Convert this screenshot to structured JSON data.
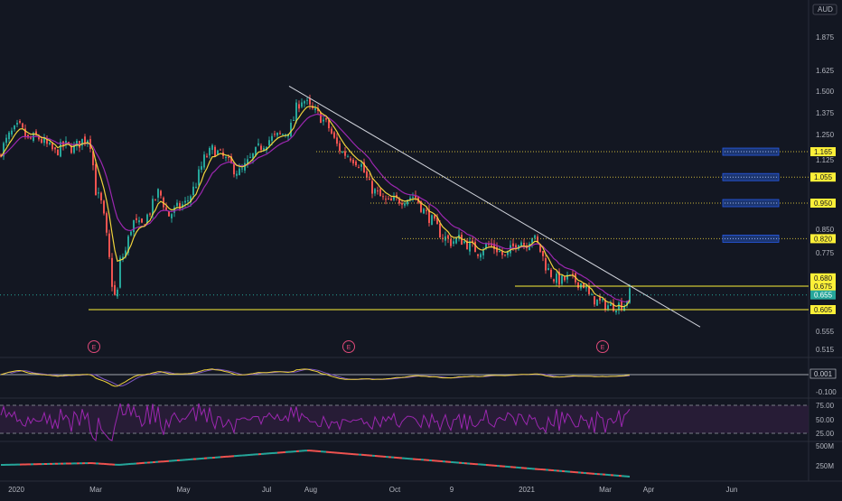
{
  "currency": "AUD",
  "chart_data": {
    "type": "candlestick",
    "title": "",
    "price_axis": {
      "ticks": [
        "1.875",
        "1.625",
        "1.500",
        "1.375",
        "1.250",
        "1.125",
        "0.850",
        "0.775",
        "0.555",
        "0.515"
      ],
      "range": [
        0.475,
        2.0
      ]
    },
    "time_axis": {
      "labels": [
        "2020",
        "Mar",
        "May",
        "Jul",
        "Aug",
        "Oct",
        "9",
        "2021",
        "Mar",
        "Apr",
        "Jun"
      ]
    },
    "price_path": [
      {
        "t": 0,
        "close": 1.17
      },
      {
        "t": 10,
        "close": 1.25
      },
      {
        "t": 20,
        "close": 1.3
      },
      {
        "t": 30,
        "close": 1.22
      },
      {
        "t": 40,
        "close": 1.24
      },
      {
        "t": 50,
        "close": 1.2
      },
      {
        "t": 60,
        "close": 1.16
      },
      {
        "t": 70,
        "close": 1.2
      },
      {
        "t": 80,
        "close": 1.18
      },
      {
        "t": 90,
        "close": 1.22
      },
      {
        "t": 98,
        "close": 1.24
      },
      {
        "t": 105,
        "close": 1.0
      },
      {
        "t": 112,
        "close": 0.94
      },
      {
        "t": 118,
        "close": 0.8
      },
      {
        "t": 124,
        "close": 0.66
      },
      {
        "t": 128,
        "close": 0.63
      },
      {
        "t": 132,
        "close": 0.75
      },
      {
        "t": 138,
        "close": 0.78
      },
      {
        "t": 146,
        "close": 0.88
      },
      {
        "t": 155,
        "close": 0.86
      },
      {
        "t": 165,
        "close": 0.92
      },
      {
        "t": 175,
        "close": 1.0
      },
      {
        "t": 185,
        "close": 0.9
      },
      {
        "t": 195,
        "close": 0.93
      },
      {
        "t": 205,
        "close": 0.95
      },
      {
        "t": 215,
        "close": 1.02
      },
      {
        "t": 225,
        "close": 1.13
      },
      {
        "t": 235,
        "close": 1.18
      },
      {
        "t": 245,
        "close": 1.14
      },
      {
        "t": 255,
        "close": 1.1
      },
      {
        "t": 265,
        "close": 1.07
      },
      {
        "t": 275,
        "close": 1.12
      },
      {
        "t": 285,
        "close": 1.18
      },
      {
        "t": 295,
        "close": 1.22
      },
      {
        "t": 305,
        "close": 1.24
      },
      {
        "t": 315,
        "close": 1.26
      },
      {
        "t": 322,
        "close": 1.3
      },
      {
        "t": 328,
        "close": 1.42
      },
      {
        "t": 334,
        "close": 1.46
      },
      {
        "t": 342,
        "close": 1.4
      },
      {
        "t": 352,
        "close": 1.36
      },
      {
        "t": 362,
        "close": 1.3
      },
      {
        "t": 370,
        "close": 1.21
      },
      {
        "t": 378,
        "close": 1.16
      },
      {
        "t": 388,
        "close": 1.14
      },
      {
        "t": 398,
        "close": 1.11
      },
      {
        "t": 408,
        "close": 1.02
      },
      {
        "t": 418,
        "close": 0.98
      },
      {
        "t": 428,
        "close": 0.95
      },
      {
        "t": 438,
        "close": 0.96
      },
      {
        "t": 448,
        "close": 0.97
      },
      {
        "t": 458,
        "close": 0.98
      },
      {
        "t": 468,
        "close": 0.92
      },
      {
        "t": 478,
        "close": 0.88
      },
      {
        "t": 488,
        "close": 0.83
      },
      {
        "t": 498,
        "close": 0.81
      },
      {
        "t": 508,
        "close": 0.82
      },
      {
        "t": 518,
        "close": 0.8
      },
      {
        "t": 528,
        "close": 0.78
      },
      {
        "t": 538,
        "close": 0.8
      },
      {
        "t": 548,
        "close": 0.79
      },
      {
        "t": 558,
        "close": 0.76
      },
      {
        "t": 566,
        "close": 0.79
      },
      {
        "t": 574,
        "close": 0.82
      },
      {
        "t": 580,
        "close": 0.8
      },
      {
        "t": 588,
        "close": 0.83
      },
      {
        "t": 596,
        "close": 0.79
      },
      {
        "t": 604,
        "close": 0.73
      },
      {
        "t": 612,
        "close": 0.7
      },
      {
        "t": 620,
        "close": 0.69
      },
      {
        "t": 628,
        "close": 0.7
      },
      {
        "t": 636,
        "close": 0.69
      },
      {
        "t": 645,
        "close": 0.68
      },
      {
        "t": 652,
        "close": 0.64
      },
      {
        "t": 660,
        "close": 0.63
      },
      {
        "t": 668,
        "close": 0.62
      },
      {
        "t": 676,
        "close": 0.615
      },
      {
        "t": 684,
        "close": 0.62
      },
      {
        "t": 690,
        "close": 0.62
      },
      {
        "t": 696,
        "close": 0.655
      }
    ],
    "series": [
      {
        "name": "",
        "color": "#f0d33c"
      },
      {
        "name": "",
        "color": "#9c27b0"
      }
    ],
    "trendline": {
      "from": {
        "t": 320,
        "price": 1.53
      },
      "to": {
        "t": 775,
        "price": 0.565
      },
      "color": "#d1d4dc"
    },
    "horizontal_levels": [
      {
        "label": "1.165",
        "price": 1.165,
        "style": "dotted",
        "from_t": 350
      },
      {
        "label": "1.055",
        "price": 1.055,
        "style": "dotted",
        "from_t": 375
      },
      {
        "label": "0.950",
        "price": 0.95,
        "style": "dotted",
        "from_t": 410
      },
      {
        "label": "0.820",
        "price": 0.82,
        "style": "dotted",
        "from_t": 445
      },
      {
        "label": "0.675",
        "price": 0.675,
        "style": "solid",
        "from_t": 570
      },
      {
        "label": "0.605",
        "price": 0.605,
        "style": "solid",
        "from_t": 98
      }
    ],
    "target_zones": [
      {
        "price": 1.165
      },
      {
        "price": 1.055
      },
      {
        "price": 0.95
      },
      {
        "price": 0.82
      }
    ],
    "price_tags": [
      {
        "label": "1.165",
        "price": 1.165,
        "bg": "#fdf038",
        "fg": "#131722"
      },
      {
        "label": "1.055",
        "price": 1.055,
        "bg": "#fdf038",
        "fg": "#131722"
      },
      {
        "label": "0.950",
        "price": 0.95,
        "bg": "#fdf038",
        "fg": "#131722"
      },
      {
        "label": "0.820",
        "price": 0.82,
        "bg": "#fdf038",
        "fg": "#131722"
      },
      {
        "label": "0.680",
        "price": 0.7,
        "bg": "#fdf038",
        "fg": "#131722"
      },
      {
        "label": "0.675",
        "price": 0.675,
        "bg": "#fdf038",
        "fg": "#131722"
      },
      {
        "label": "0.655",
        "price": 0.649,
        "bg": "#26a69a",
        "fg": "#ffffff"
      },
      {
        "label": "0.605",
        "price": 0.605,
        "bg": "#fdf038",
        "fg": "#131722"
      }
    ],
    "earnings_markers": [
      "E",
      "E",
      "E"
    ],
    "oscillator_panel": {
      "price_tag": "0.001",
      "ticks": [
        "-0.100"
      ]
    },
    "rsi_panel": {
      "ticks": [
        "75.00",
        "50.00",
        "25.00"
      ]
    },
    "volume_panel": {
      "ticks": [
        "500M",
        "250M"
      ]
    },
    "colors": {
      "background": "#131722",
      "up": "#26a69a",
      "down": "#ef5350",
      "text": "#b2b5be",
      "highlight": "#fdf038"
    }
  }
}
